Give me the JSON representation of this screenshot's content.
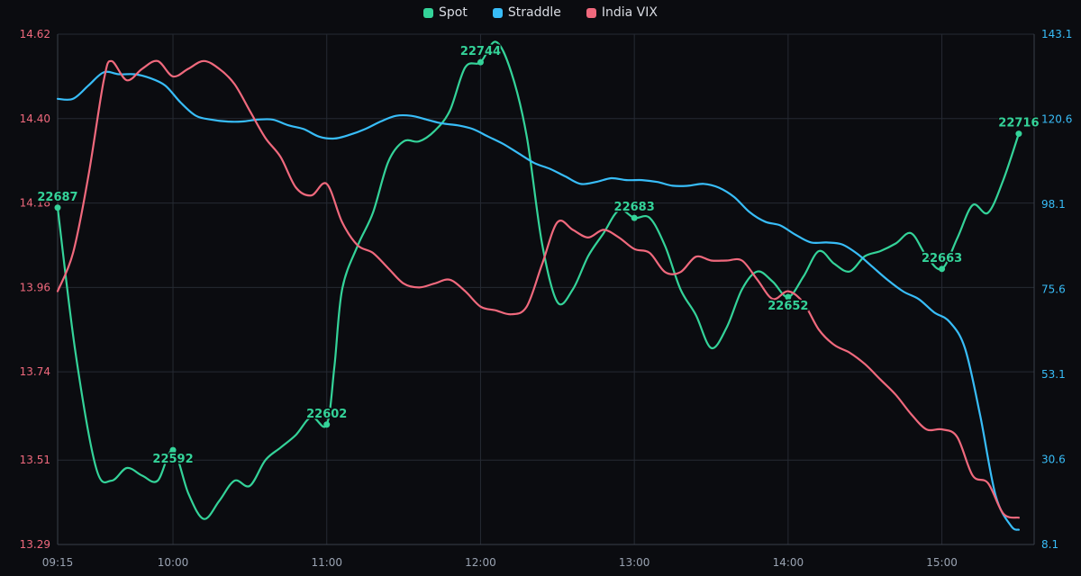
{
  "chart_data": {
    "type": "line",
    "x_ticks": [
      "09:15",
      "10:00",
      "11:00",
      "12:00",
      "13:00",
      "14:00",
      "15:00"
    ],
    "left_axis": {
      "series": "India VIX",
      "ylim": [
        13.29,
        14.62
      ],
      "ticks": [
        "13.29",
        "13.51",
        "13.74",
        "13.96",
        "14.18",
        "14.40",
        "14.62"
      ]
    },
    "right_axis": {
      "series": "Straddle",
      "ylim": [
        8.1,
        143.1
      ],
      "ticks": [
        "8.1",
        "30.6",
        "53.1",
        "75.6",
        "98.1",
        "120.6",
        "143.1"
      ]
    },
    "spot_axis_range": [
      22555,
      22755
    ],
    "series": [
      {
        "name": "Spot",
        "color": "#34d399",
        "axis": "hidden",
        "points": [
          [
            "09:15",
            22687
          ],
          [
            "09:22",
            22630
          ],
          [
            "09:30",
            22585
          ],
          [
            "09:36",
            22580
          ],
          [
            "09:42",
            22585
          ],
          [
            "09:48",
            22582
          ],
          [
            "09:54",
            22580
          ],
          [
            "10:00",
            22592
          ],
          [
            "10:06",
            22575
          ],
          [
            "10:12",
            22565
          ],
          [
            "10:18",
            22572
          ],
          [
            "10:24",
            22580
          ],
          [
            "10:30",
            22578
          ],
          [
            "10:36",
            22588
          ],
          [
            "10:42",
            22593
          ],
          [
            "10:48",
            22598
          ],
          [
            "10:54",
            22605
          ],
          [
            "11:00",
            22602
          ],
          [
            "11:03",
            22625
          ],
          [
            "11:06",
            22655
          ],
          [
            "11:12",
            22672
          ],
          [
            "11:18",
            22685
          ],
          [
            "11:24",
            22705
          ],
          [
            "11:30",
            22713
          ],
          [
            "11:36",
            22713
          ],
          [
            "11:42",
            22717
          ],
          [
            "11:48",
            22725
          ],
          [
            "11:54",
            22742
          ],
          [
            "12:00",
            22744
          ],
          [
            "12:06",
            22752
          ],
          [
            "12:12",
            22740
          ],
          [
            "12:18",
            22715
          ],
          [
            "12:24",
            22673
          ],
          [
            "12:30",
            22650
          ],
          [
            "12:36",
            22655
          ],
          [
            "12:42",
            22668
          ],
          [
            "12:48",
            22677
          ],
          [
            "12:54",
            22686
          ],
          [
            "13:00",
            22683
          ],
          [
            "13:06",
            22683
          ],
          [
            "13:12",
            22672
          ],
          [
            "13:18",
            22655
          ],
          [
            "13:24",
            22645
          ],
          [
            "13:30",
            22632
          ],
          [
            "13:36",
            22640
          ],
          [
            "13:42",
            22655
          ],
          [
            "13:48",
            22662
          ],
          [
            "13:54",
            22658
          ],
          [
            "14:00",
            22652
          ],
          [
            "14:06",
            22660
          ],
          [
            "14:12",
            22670
          ],
          [
            "14:18",
            22665
          ],
          [
            "14:24",
            22662
          ],
          [
            "14:30",
            22668
          ],
          [
            "14:36",
            22670
          ],
          [
            "14:42",
            22673
          ],
          [
            "14:48",
            22677
          ],
          [
            "14:54",
            22668
          ],
          [
            "15:00",
            22663
          ],
          [
            "15:06",
            22675
          ],
          [
            "15:12",
            22688
          ],
          [
            "15:18",
            22685
          ],
          [
            "15:24",
            22698
          ],
          [
            "15:30",
            22716
          ]
        ],
        "labels": [
          [
            "09:15",
            22687,
            "22687"
          ],
          [
            "10:00",
            22592,
            "22592"
          ],
          [
            "11:00",
            22602,
            "22602"
          ],
          [
            "12:00",
            22744,
            "22744"
          ],
          [
            "13:00",
            22683,
            "22683"
          ],
          [
            "14:00",
            22652,
            "22652"
          ],
          [
            "15:00",
            22663,
            "22663"
          ],
          [
            "15:30",
            22716,
            "22716"
          ]
        ]
      },
      {
        "name": "Straddle",
        "color": "#38bdf8",
        "axis": "right",
        "points": [
          [
            "09:15",
            126.0
          ],
          [
            "09:21",
            126.0
          ],
          [
            "09:27",
            129.5
          ],
          [
            "09:33",
            133.0
          ],
          [
            "09:39",
            132.5
          ],
          [
            "09:45",
            132.5
          ],
          [
            "09:51",
            131.5
          ],
          [
            "09:57",
            129.5
          ],
          [
            "10:03",
            125.0
          ],
          [
            "10:09",
            121.5
          ],
          [
            "10:15",
            120.5
          ],
          [
            "10:21",
            120.0
          ],
          [
            "10:27",
            120.0
          ],
          [
            "10:33",
            120.5
          ],
          [
            "10:39",
            120.5
          ],
          [
            "10:45",
            119.0
          ],
          [
            "10:51",
            118.0
          ],
          [
            "10:57",
            116.0
          ],
          [
            "11:03",
            115.5
          ],
          [
            "11:09",
            116.5
          ],
          [
            "11:15",
            118.0
          ],
          [
            "11:21",
            120.0
          ],
          [
            "11:27",
            121.5
          ],
          [
            "11:33",
            121.5
          ],
          [
            "11:39",
            120.5
          ],
          [
            "11:45",
            119.5
          ],
          [
            "11:51",
            119.0
          ],
          [
            "11:57",
            118.0
          ],
          [
            "12:03",
            116.0
          ],
          [
            "12:09",
            114.0
          ],
          [
            "12:15",
            111.5
          ],
          [
            "12:21",
            109.0
          ],
          [
            "12:27",
            107.5
          ],
          [
            "12:33",
            105.5
          ],
          [
            "12:39",
            103.5
          ],
          [
            "12:45",
            104.0
          ],
          [
            "12:51",
            105.0
          ],
          [
            "12:57",
            104.5
          ],
          [
            "13:03",
            104.5
          ],
          [
            "13:09",
            104.0
          ],
          [
            "13:15",
            103.0
          ],
          [
            "13:21",
            103.0
          ],
          [
            "13:27",
            103.5
          ],
          [
            "13:33",
            102.5
          ],
          [
            "13:39",
            100.0
          ],
          [
            "13:45",
            96.0
          ],
          [
            "13:51",
            93.5
          ],
          [
            "13:57",
            92.5
          ],
          [
            "14:03",
            90.0
          ],
          [
            "14:09",
            88.0
          ],
          [
            "14:15",
            88.0
          ],
          [
            "14:21",
            87.5
          ],
          [
            "14:27",
            85.0
          ],
          [
            "14:33",
            81.5
          ],
          [
            "14:39",
            78.0
          ],
          [
            "14:45",
            75.0
          ],
          [
            "14:51",
            73.0
          ],
          [
            "14:57",
            69.5
          ],
          [
            "15:03",
            67.0
          ],
          [
            "15:09",
            60.0
          ],
          [
            "15:15",
            42.0
          ],
          [
            "15:21",
            21.0
          ],
          [
            "15:27",
            13.0
          ],
          [
            "15:30",
            12.0
          ]
        ]
      },
      {
        "name": "India VIX",
        "color": "#f0697d",
        "axis": "left",
        "points": [
          [
            "09:15",
            13.95
          ],
          [
            "09:21",
            14.05
          ],
          [
            "09:27",
            14.25
          ],
          [
            "09:33",
            14.5
          ],
          [
            "09:36",
            14.55
          ],
          [
            "09:42",
            14.5
          ],
          [
            "09:48",
            14.53
          ],
          [
            "09:54",
            14.55
          ],
          [
            "10:00",
            14.51
          ],
          [
            "10:06",
            14.53
          ],
          [
            "10:12",
            14.55
          ],
          [
            "10:18",
            14.53
          ],
          [
            "10:24",
            14.49
          ],
          [
            "10:30",
            14.42
          ],
          [
            "10:36",
            14.35
          ],
          [
            "10:42",
            14.3
          ],
          [
            "10:48",
            14.22
          ],
          [
            "10:54",
            14.2
          ],
          [
            "11:00",
            14.23
          ],
          [
            "11:06",
            14.13
          ],
          [
            "11:12",
            14.07
          ],
          [
            "11:18",
            14.05
          ],
          [
            "11:24",
            14.01
          ],
          [
            "11:30",
            13.97
          ],
          [
            "11:36",
            13.96
          ],
          [
            "11:42",
            13.97
          ],
          [
            "11:48",
            13.98
          ],
          [
            "11:54",
            13.95
          ],
          [
            "12:00",
            13.91
          ],
          [
            "12:06",
            13.9
          ],
          [
            "12:12",
            13.89
          ],
          [
            "12:18",
            13.91
          ],
          [
            "12:24",
            14.02
          ],
          [
            "12:30",
            14.13
          ],
          [
            "12:36",
            14.11
          ],
          [
            "12:42",
            14.09
          ],
          [
            "12:48",
            14.11
          ],
          [
            "12:54",
            14.09
          ],
          [
            "13:00",
            14.06
          ],
          [
            "13:06",
            14.05
          ],
          [
            "13:12",
            14.0
          ],
          [
            "13:18",
            14.0
          ],
          [
            "13:24",
            14.04
          ],
          [
            "13:30",
            14.03
          ],
          [
            "13:36",
            14.03
          ],
          [
            "13:42",
            14.03
          ],
          [
            "13:48",
            13.98
          ],
          [
            "13:54",
            13.93
          ],
          [
            "14:00",
            13.95
          ],
          [
            "14:06",
            13.92
          ],
          [
            "14:12",
            13.85
          ],
          [
            "14:18",
            13.81
          ],
          [
            "14:24",
            13.79
          ],
          [
            "14:30",
            13.76
          ],
          [
            "14:36",
            13.72
          ],
          [
            "14:42",
            13.68
          ],
          [
            "14:48",
            13.63
          ],
          [
            "14:54",
            13.59
          ],
          [
            "15:00",
            13.59
          ],
          [
            "15:06",
            13.57
          ],
          [
            "15:12",
            13.47
          ],
          [
            "15:18",
            13.45
          ],
          [
            "15:24",
            13.37
          ],
          [
            "15:30",
            13.36
          ]
        ]
      }
    ],
    "grid": true,
    "legend_position": "top-center",
    "colors": {
      "background": "#0b0c10",
      "grid": "#262a33",
      "axis_text_x": "#9aa3b2",
      "axis_text_left": "#f0697d",
      "axis_text_right": "#38bdf8"
    }
  }
}
